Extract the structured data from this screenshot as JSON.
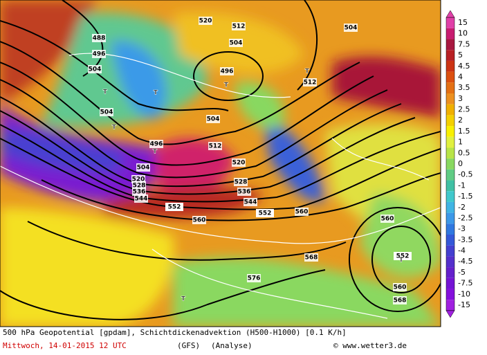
{
  "map": {
    "labels": [
      "488",
      "496",
      "504",
      "504",
      "496",
      "504",
      "520",
      "528",
      "536",
      "544",
      "552",
      "560",
      "552",
      "560",
      "568",
      "576",
      "560",
      "552",
      "560",
      "568",
      "512",
      "520",
      "528",
      "536",
      "544",
      "496",
      "504",
      "512",
      "504",
      "520",
      "512",
      "504"
    ],
    "highs_lows": [
      "T",
      "T",
      "T",
      "T",
      "T",
      "T",
      "T",
      "T"
    ]
  },
  "legend": {
    "items": [
      {
        "label": "15",
        "color": "#e040a8"
      },
      {
        "label": "10",
        "color": "#c81c70"
      },
      {
        "label": "7.5",
        "color": "#a81840"
      },
      {
        "label": "5",
        "color": "#b82024"
      },
      {
        "label": "4.5",
        "color": "#cc3414"
      },
      {
        "label": "4",
        "color": "#dc5010"
      },
      {
        "label": "3.5",
        "color": "#e47014"
      },
      {
        "label": "3",
        "color": "#ec9020"
      },
      {
        "label": "2.5",
        "color": "#f0b000"
      },
      {
        "label": "2",
        "color": "#f4d000"
      },
      {
        "label": "1.5",
        "color": "#f8f000"
      },
      {
        "label": "1",
        "color": "#e0f040"
      },
      {
        "label": "0.5",
        "color": "#b8e448"
      },
      {
        "label": "0",
        "color": "#88d860"
      },
      {
        "label": "-0.5",
        "color": "#60cc84"
      },
      {
        "label": "-1",
        "color": "#40c0a4"
      },
      {
        "label": "-1.5",
        "color": "#40c8cc"
      },
      {
        "label": "-2",
        "color": "#40b4e4"
      },
      {
        "label": "-2.5",
        "color": "#3c98e8"
      },
      {
        "label": "-3",
        "color": "#3078e0"
      },
      {
        "label": "-3.5",
        "color": "#3458d8"
      },
      {
        "label": "-4",
        "color": "#4440d0"
      },
      {
        "label": "-4.5",
        "color": "#5430cc"
      },
      {
        "label": "-5",
        "color": "#6420cc"
      },
      {
        "label": "-7.5",
        "color": "#7414d4"
      },
      {
        "label": "-10",
        "color": "#8410dc"
      },
      {
        "label": "-15",
        "color": "#a020e0"
      }
    ]
  },
  "footer": {
    "line1": "500 hPa Geopotential [gpdam], Schichtdickenadvektion (H500-H1000) [0.1 K/h]",
    "date": "Mittwoch, 14-01-2015  12 UTC",
    "model": "(GFS)",
    "run": "(Analyse)",
    "credit": "© www.wetter3.de"
  }
}
